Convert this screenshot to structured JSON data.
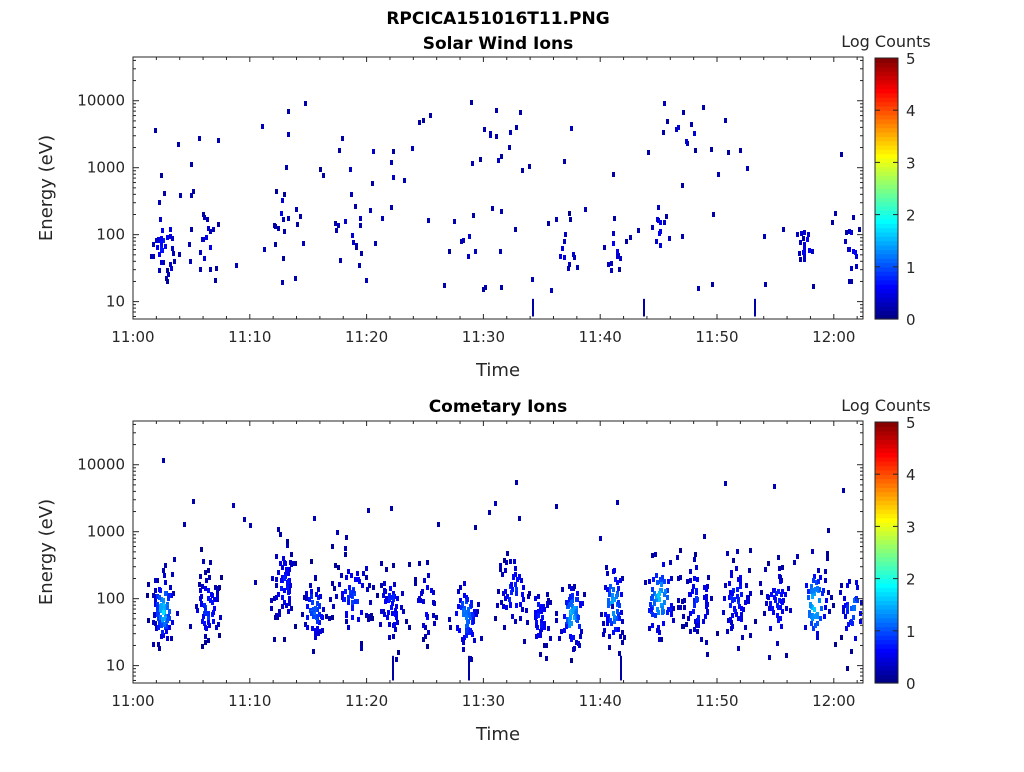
{
  "figure": {
    "title": "RPCICA151016T11.PNG"
  },
  "colorbar": {
    "label": "Log Counts",
    "ticks": [
      "0",
      "1",
      "2",
      "3",
      "4",
      "5"
    ],
    "range": [
      0,
      5
    ]
  },
  "chart_data": [
    {
      "type": "heatmap",
      "title": "Solar Wind Ions",
      "xlabel": "Time",
      "ylabel": "Energy (eV)",
      "x_ticks": [
        "11:00",
        "11:10",
        "11:20",
        "11:30",
        "11:40",
        "11:50",
        "12:00"
      ],
      "x_range_minutes": [
        0,
        62.5
      ],
      "y_scale": "log",
      "y_ticks": [
        "10",
        "100",
        "1000",
        "10000"
      ],
      "y_range": [
        5.5,
        45000
      ],
      "z_label": "Log Counts",
      "z_range": [
        0,
        5
      ],
      "clusters": [
        {
          "t": 2.5,
          "e": 80,
          "n": 28,
          "st": 0.5,
          "se": 0.22,
          "z": 0.6
        },
        {
          "t": 3.2,
          "e": 30,
          "n": 6,
          "st": 0.3,
          "se": 0.15,
          "z": 0.4
        },
        {
          "t": 6.3,
          "e": 70,
          "n": 14,
          "st": 0.4,
          "se": 0.25,
          "z": 0.4
        },
        {
          "t": 12.5,
          "e": 220,
          "n": 10,
          "st": 0.4,
          "se": 0.25,
          "z": 0.3
        },
        {
          "t": 18.5,
          "e": 140,
          "n": 10,
          "st": 0.6,
          "se": 0.2,
          "z": 0.3
        },
        {
          "t": 28.5,
          "e": 70,
          "n": 6,
          "st": 0.6,
          "se": 0.2,
          "z": 0.3
        },
        {
          "t": 37.0,
          "e": 60,
          "n": 12,
          "st": 0.6,
          "se": 0.2,
          "z": 0.3
        },
        {
          "t": 41.0,
          "e": 80,
          "n": 12,
          "st": 0.5,
          "se": 0.25,
          "z": 0.4
        },
        {
          "t": 45.0,
          "e": 120,
          "n": 12,
          "st": 0.4,
          "se": 0.3,
          "z": 0.4
        },
        {
          "t": 57.5,
          "e": 80,
          "n": 14,
          "st": 0.4,
          "se": 0.2,
          "z": 0.5
        },
        {
          "t": 61.5,
          "e": 70,
          "n": 14,
          "st": 0.4,
          "se": 0.25,
          "z": 0.5
        },
        {
          "t": 31.0,
          "e": 3500,
          "n": 10,
          "st": 2.0,
          "se": 0.35,
          "z": 0.2
        },
        {
          "t": 47.5,
          "e": 4000,
          "n": 10,
          "st": 1.5,
          "se": 0.35,
          "z": 0.2
        },
        {
          "t": 20.0,
          "e": 1200,
          "n": 10,
          "st": 2.5,
          "se": 0.35,
          "z": 0.2
        }
      ],
      "scatter": 90,
      "spikes": [
        {
          "t": 34.2,
          "e1": 6,
          "e2": 11
        },
        {
          "t": 43.7,
          "e1": 6,
          "e2": 11
        },
        {
          "t": 53.2,
          "e1": 6,
          "e2": 11
        }
      ],
      "points": [
        {
          "t": 14.6,
          "e": 10000
        },
        {
          "t": 13.2,
          "e": 7500
        },
        {
          "t": 31.0,
          "e": 7800
        },
        {
          "t": 48.7,
          "e": 8500
        },
        {
          "t": 47.0,
          "e": 7200
        },
        {
          "t": 25.3,
          "e": 6500
        },
        {
          "t": 3.8,
          "e": 2400
        },
        {
          "t": 5.6,
          "e": 3000
        },
        {
          "t": 60.5,
          "e": 1700
        }
      ]
    },
    {
      "type": "heatmap",
      "title": "Cometary Ions",
      "xlabel": "Time",
      "ylabel": "Energy (eV)",
      "x_ticks": [
        "11:00",
        "11:10",
        "11:20",
        "11:30",
        "11:40",
        "11:50",
        "12:00"
      ],
      "x_range_minutes": [
        0,
        62.5
      ],
      "y_scale": "log",
      "y_ticks": [
        "10",
        "100",
        "1000",
        "10000"
      ],
      "y_range": [
        5.5,
        45000
      ],
      "z_label": "Log Counts",
      "z_range": [
        0,
        5
      ],
      "clusters": [
        {
          "t": 2.5,
          "e": 75,
          "n": 90,
          "st": 0.45,
          "se": 0.25,
          "z": 1.5
        },
        {
          "t": 6.3,
          "e": 80,
          "n": 60,
          "st": 0.6,
          "se": 0.25,
          "z": 0.8
        },
        {
          "t": 12.8,
          "e": 180,
          "n": 60,
          "st": 0.6,
          "se": 0.3,
          "z": 0.6
        },
        {
          "t": 15.4,
          "e": 70,
          "n": 50,
          "st": 0.5,
          "se": 0.25,
          "z": 1.0
        },
        {
          "t": 18.7,
          "e": 120,
          "n": 60,
          "st": 0.8,
          "se": 0.3,
          "z": 0.8
        },
        {
          "t": 22.0,
          "e": 90,
          "n": 50,
          "st": 0.6,
          "se": 0.3,
          "z": 0.6
        },
        {
          "t": 25.0,
          "e": 90,
          "n": 30,
          "st": 0.6,
          "se": 0.3,
          "z": 0.5
        },
        {
          "t": 28.3,
          "e": 60,
          "n": 60,
          "st": 0.6,
          "se": 0.25,
          "z": 1.1
        },
        {
          "t": 32.5,
          "e": 130,
          "n": 50,
          "st": 0.7,
          "se": 0.3,
          "z": 0.7
        },
        {
          "t": 34.7,
          "e": 60,
          "n": 40,
          "st": 0.6,
          "se": 0.25,
          "z": 0.6
        },
        {
          "t": 37.5,
          "e": 60,
          "n": 70,
          "st": 0.5,
          "se": 0.25,
          "z": 1.4
        },
        {
          "t": 41.0,
          "e": 90,
          "n": 60,
          "st": 0.5,
          "se": 0.3,
          "z": 1.3
        },
        {
          "t": 45.0,
          "e": 110,
          "n": 70,
          "st": 0.7,
          "se": 0.3,
          "z": 1.4
        },
        {
          "t": 48.2,
          "e": 100,
          "n": 60,
          "st": 0.7,
          "se": 0.3,
          "z": 0.7
        },
        {
          "t": 51.5,
          "e": 110,
          "n": 60,
          "st": 0.7,
          "se": 0.3,
          "z": 0.7
        },
        {
          "t": 55.0,
          "e": 90,
          "n": 50,
          "st": 0.6,
          "se": 0.3,
          "z": 0.7
        },
        {
          "t": 58.3,
          "e": 90,
          "n": 60,
          "st": 0.6,
          "se": 0.3,
          "z": 1.5
        },
        {
          "t": 61.5,
          "e": 80,
          "n": 40,
          "st": 0.5,
          "se": 0.3,
          "z": 1.0
        }
      ],
      "scatter": 40,
      "spikes": [
        {
          "t": 22.2,
          "e1": 6,
          "e2": 14
        },
        {
          "t": 28.7,
          "e1": 6,
          "e2": 14
        },
        {
          "t": 41.7,
          "e1": 6,
          "e2": 14
        }
      ],
      "points": [
        {
          "t": 2.5,
          "e": 12500
        },
        {
          "t": 22.0,
          "e": 2400
        },
        {
          "t": 33.0,
          "e": 1700
        },
        {
          "t": 26.0,
          "e": 1400
        },
        {
          "t": 12.5,
          "e": 1000
        }
      ]
    }
  ]
}
